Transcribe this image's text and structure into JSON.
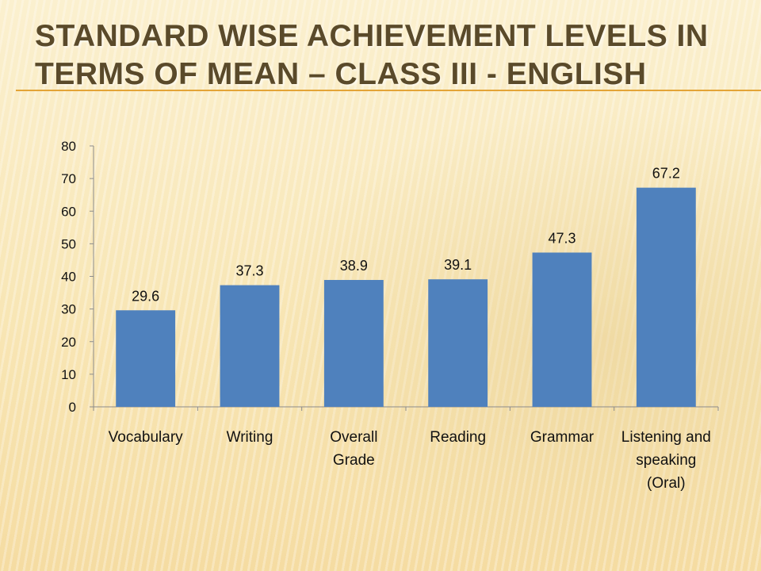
{
  "slide": {
    "title_line1": "Standard wise achievement levels in",
    "title_line2": "terms of mean – class III - English"
  },
  "chart_data": {
    "type": "bar",
    "title": "",
    "xlabel": "",
    "ylabel": "",
    "categories": [
      [
        "Vocabulary"
      ],
      [
        "Writing"
      ],
      [
        "Overall",
        "Grade"
      ],
      [
        "Reading"
      ],
      [
        "Grammar"
      ],
      [
        "Listening and",
        "speaking",
        "(Oral)"
      ]
    ],
    "values": [
      29.6,
      37.3,
      38.9,
      39.1,
      47.3,
      67.2
    ],
    "data_labels": [
      "29.6",
      "37.3",
      "38.9",
      "39.1",
      "47.3",
      "67.2"
    ],
    "ylim": [
      0,
      80
    ],
    "yticks": [
      0,
      10,
      20,
      30,
      40,
      50,
      60,
      70,
      80
    ],
    "grid": false,
    "legend": "none",
    "bar_color": "#4f81bd"
  }
}
